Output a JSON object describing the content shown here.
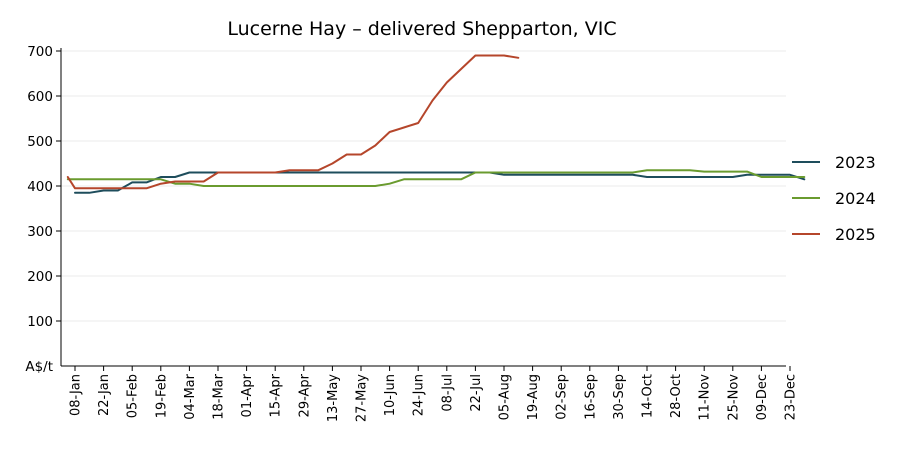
{
  "chart_data": {
    "type": "line",
    "title": "Lucerne Hay – delivered Shepparton, VIC",
    "ylabel": "A$/t",
    "ylim": [
      0,
      700
    ],
    "yticks": [
      100,
      200,
      300,
      400,
      500,
      600,
      700
    ],
    "grid": "horizontal",
    "legend_position": "right",
    "x_tick_labels": [
      "08-Jan",
      "22-Jan",
      "05-Feb",
      "19-Feb",
      "04-Mar",
      "18-Mar",
      "01-Apr",
      "15-Apr",
      "29-Apr",
      "13-May",
      "27-May",
      "10-Jun",
      "24-Jun",
      "08-Jul",
      "22-Jul",
      "05-Aug",
      "19-Aug",
      "02-Sep",
      "16-Sep",
      "30-Sep",
      "14-Oct",
      "28-Oct",
      "11-Nov",
      "25-Nov",
      "09-Dec",
      "23-Dec"
    ],
    "x_unit": "week",
    "series": [
      {
        "name": "2023",
        "color": "#1e4d5c",
        "points": [
          [
            1,
            385
          ],
          [
            2,
            385
          ],
          [
            3,
            390
          ],
          [
            4,
            390
          ],
          [
            5,
            408
          ],
          [
            6,
            408
          ],
          [
            7,
            420
          ],
          [
            8,
            420
          ],
          [
            9,
            430
          ],
          [
            10,
            430
          ],
          [
            11,
            430
          ],
          [
            12,
            430
          ],
          [
            13,
            430
          ],
          [
            14,
            430
          ],
          [
            15,
            430
          ],
          [
            16,
            430
          ],
          [
            17,
            430
          ],
          [
            18,
            430
          ],
          [
            19,
            430
          ],
          [
            20,
            430
          ],
          [
            21,
            430
          ],
          [
            22,
            430
          ],
          [
            23,
            430
          ],
          [
            24,
            430
          ],
          [
            25,
            430
          ],
          [
            26,
            430
          ],
          [
            27,
            430
          ],
          [
            28,
            430
          ],
          [
            29,
            430
          ],
          [
            30,
            430
          ],
          [
            31,
            425
          ],
          [
            32,
            425
          ],
          [
            33,
            425
          ],
          [
            34,
            425
          ],
          [
            35,
            425
          ],
          [
            36,
            425
          ],
          [
            37,
            425
          ],
          [
            38,
            425
          ],
          [
            39,
            425
          ],
          [
            40,
            425
          ],
          [
            41,
            420
          ],
          [
            42,
            420
          ],
          [
            43,
            420
          ],
          [
            44,
            420
          ],
          [
            45,
            420
          ],
          [
            46,
            420
          ],
          [
            47,
            420
          ],
          [
            48,
            425
          ],
          [
            49,
            425
          ],
          [
            50,
            425
          ],
          [
            51,
            425
          ],
          [
            52,
            415
          ]
        ]
      },
      {
        "name": "2024",
        "color": "#6a9b2f",
        "points": [
          [
            0.5,
            415
          ],
          [
            1,
            415
          ],
          [
            2,
            415
          ],
          [
            3,
            415
          ],
          [
            4,
            415
          ],
          [
            5,
            415
          ],
          [
            6,
            415
          ],
          [
            7,
            415
          ],
          [
            8,
            405
          ],
          [
            9,
            405
          ],
          [
            10,
            400
          ],
          [
            11,
            400
          ],
          [
            12,
            400
          ],
          [
            13,
            400
          ],
          [
            14,
            400
          ],
          [
            15,
            400
          ],
          [
            16,
            400
          ],
          [
            17,
            400
          ],
          [
            18,
            400
          ],
          [
            19,
            400
          ],
          [
            20,
            400
          ],
          [
            21,
            400
          ],
          [
            22,
            400
          ],
          [
            23,
            405
          ],
          [
            24,
            415
          ],
          [
            25,
            415
          ],
          [
            26,
            415
          ],
          [
            27,
            415
          ],
          [
            28,
            415
          ],
          [
            29,
            430
          ],
          [
            30,
            430
          ],
          [
            31,
            430
          ],
          [
            32,
            430
          ],
          [
            33,
            430
          ],
          [
            34,
            430
          ],
          [
            35,
            430
          ],
          [
            36,
            430
          ],
          [
            37,
            430
          ],
          [
            38,
            430
          ],
          [
            39,
            430
          ],
          [
            40,
            430
          ],
          [
            41,
            435
          ],
          [
            42,
            435
          ],
          [
            43,
            435
          ],
          [
            44,
            435
          ],
          [
            45,
            432
          ],
          [
            46,
            432
          ],
          [
            47,
            432
          ],
          [
            48,
            432
          ],
          [
            49,
            420
          ],
          [
            50,
            420
          ],
          [
            51,
            420
          ],
          [
            52,
            420
          ]
        ]
      },
      {
        "name": "2025",
        "color": "#b5462b",
        "points": [
          [
            0.5,
            420
          ],
          [
            1,
            395
          ],
          [
            2,
            395
          ],
          [
            3,
            395
          ],
          [
            4,
            395
          ],
          [
            5,
            395
          ],
          [
            6,
            395
          ],
          [
            7,
            405
          ],
          [
            8,
            410
          ],
          [
            9,
            410
          ],
          [
            10,
            410
          ],
          [
            11,
            430
          ],
          [
            12,
            430
          ],
          [
            13,
            430
          ],
          [
            14,
            430
          ],
          [
            15,
            430
          ],
          [
            16,
            435
          ],
          [
            17,
            435
          ],
          [
            18,
            435
          ],
          [
            19,
            450
          ],
          [
            20,
            470
          ],
          [
            21,
            470
          ],
          [
            22,
            490
          ],
          [
            23,
            520
          ],
          [
            24,
            530
          ],
          [
            25,
            540
          ],
          [
            26,
            590
          ],
          [
            27,
            630
          ],
          [
            28,
            660
          ],
          [
            29,
            690
          ],
          [
            30,
            690
          ],
          [
            31,
            690
          ],
          [
            32,
            685
          ]
        ]
      }
    ]
  }
}
